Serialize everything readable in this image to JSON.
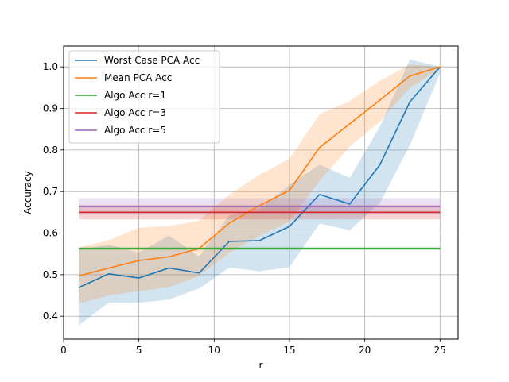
{
  "chart_data": {
    "type": "line",
    "title": "",
    "xlabel": "r",
    "ylabel": "Accuracy",
    "xlim": [
      0,
      26.2
    ],
    "ylim": [
      0.345,
      1.05
    ],
    "xticks": [
      0,
      5,
      10,
      15,
      20,
      25
    ],
    "yticks": [
      0.4,
      0.5,
      0.6,
      0.7,
      0.8,
      0.9,
      1.0
    ],
    "grid": true,
    "legend_position": "top-left",
    "x": [
      1,
      3,
      5,
      7,
      9,
      11,
      13,
      15,
      17,
      19,
      21,
      23,
      25
    ],
    "series": [
      {
        "name": "Worst Case PCA Acc",
        "color": "#1f77b4",
        "values": [
          0.469,
          0.502,
          0.492,
          0.516,
          0.504,
          0.58,
          0.582,
          0.616,
          0.693,
          0.67,
          0.764,
          0.916,
          1.0
        ],
        "band_low": [
          0.378,
          0.433,
          0.433,
          0.44,
          0.467,
          0.517,
          0.508,
          0.518,
          0.623,
          0.607,
          0.672,
          0.812,
          0.985
        ],
        "band_high": [
          0.56,
          0.572,
          0.553,
          0.594,
          0.544,
          0.643,
          0.658,
          0.716,
          0.765,
          0.733,
          0.856,
          1.018,
          1.0
        ]
      },
      {
        "name": "Mean PCA Acc",
        "color": "#ff7f0e",
        "values": [
          0.497,
          0.516,
          0.534,
          0.543,
          0.563,
          0.624,
          0.666,
          0.703,
          0.806,
          0.863,
          0.92,
          0.978,
          1.0
        ],
        "band_low": [
          0.43,
          0.45,
          0.46,
          0.47,
          0.497,
          0.553,
          0.593,
          0.628,
          0.726,
          0.808,
          0.868,
          0.95,
          0.995
        ],
        "band_high": [
          0.565,
          0.583,
          0.613,
          0.617,
          0.63,
          0.693,
          0.74,
          0.779,
          0.886,
          0.918,
          0.966,
          1.006,
          1.0
        ]
      },
      {
        "name": "Algo Acc r=1",
        "color": "#2ca02c",
        "values": [
          0.563,
          0.563
        ],
        "x": [
          1,
          25
        ],
        "band_low": [
          0.559,
          0.559
        ],
        "band_high": [
          0.567,
          0.567
        ]
      },
      {
        "name": "Algo Acc r=3",
        "color": "#d62728",
        "values": [
          0.65,
          0.65
        ],
        "x": [
          1,
          25
        ],
        "band_low": [
          0.633,
          0.633
        ],
        "band_high": [
          0.668,
          0.668
        ]
      },
      {
        "name": "Algo Acc r=5",
        "color": "#9467bd",
        "values": [
          0.664,
          0.664
        ],
        "x": [
          1,
          25
        ],
        "band_low": [
          0.645,
          0.645
        ],
        "band_high": [
          0.684,
          0.684
        ]
      }
    ]
  }
}
